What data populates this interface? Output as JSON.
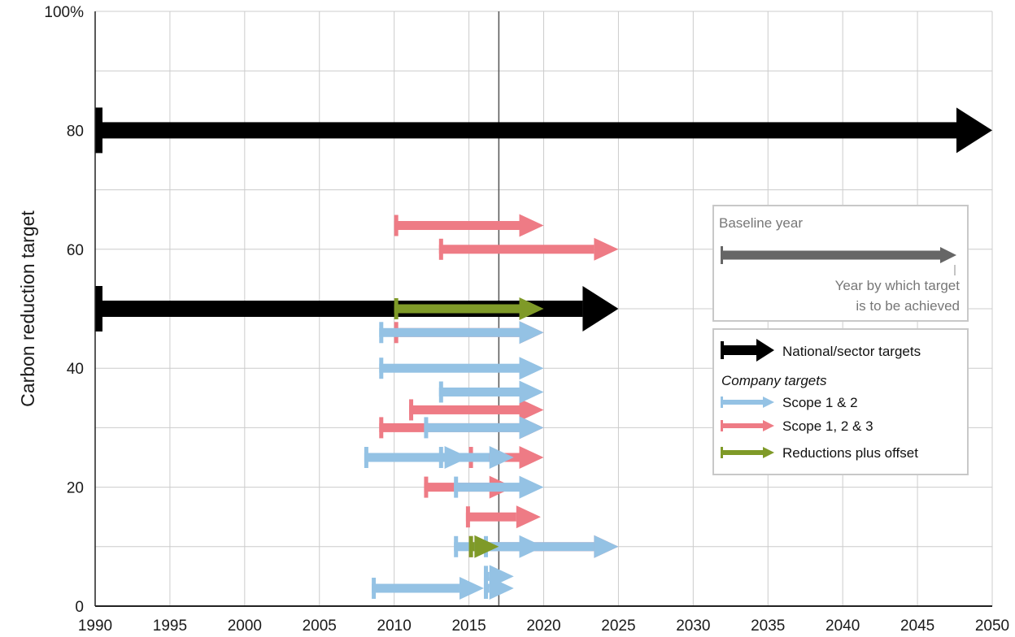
{
  "chart_data": {
    "type": "range-arrow",
    "title": "",
    "xlabel": "",
    "ylabel": "Carbon reduction target",
    "xlim": [
      1990,
      2050
    ],
    "ylim": [
      0,
      100
    ],
    "x_ticks": [
      1990,
      1995,
      2000,
      2005,
      2010,
      2015,
      2020,
      2025,
      2030,
      2035,
      2040,
      2045,
      2050
    ],
    "y_ticks": [
      {
        "value": 0,
        "label": "0"
      },
      {
        "value": 20,
        "label": "20"
      },
      {
        "value": 40,
        "label": "40"
      },
      {
        "value": 60,
        "label": "60"
      },
      {
        "value": 80,
        "label": "80"
      },
      {
        "value": 100,
        "label": "100%"
      }
    ],
    "grid": true,
    "reference_line_x": 2017,
    "colors": {
      "national": "#000000",
      "scope12": "#94c2e4",
      "scope123": "#ee7b85",
      "offset": "#7f9a28",
      "baseline_example": "#666666"
    },
    "series": [
      {
        "key": "national",
        "name": "National/sector targets",
        "arrows": [
          {
            "baseline": 1990,
            "target": 2050,
            "reduction": 80
          },
          {
            "baseline": 1990,
            "target": 2025,
            "reduction": 50
          }
        ]
      },
      {
        "key": "scope123",
        "name": "Scope 1, 2 & 3",
        "arrows": [
          {
            "baseline": 2010,
            "target": 2020,
            "reduction": 64
          },
          {
            "baseline": 2013,
            "target": 2025,
            "reduction": 60
          },
          {
            "baseline": 2010,
            "target": 2020,
            "reduction": 46
          },
          {
            "baseline": 2011,
            "target": 2020,
            "reduction": 33
          },
          {
            "baseline": 2009,
            "target": 2020,
            "reduction": 30
          },
          {
            "baseline": 2015,
            "target": 2020,
            "reduction": 25
          },
          {
            "baseline": 2012,
            "target": 2018,
            "reduction": 20
          },
          {
            "baseline": 2014.8,
            "target": 2019.8,
            "reduction": 15
          },
          {
            "baseline": 2015,
            "target": 2025,
            "reduction": 10
          }
        ]
      },
      {
        "key": "scope12",
        "name": "Scope 1 & 2",
        "arrows": [
          {
            "baseline": 2009,
            "target": 2020,
            "reduction": 46
          },
          {
            "baseline": 2009,
            "target": 2020,
            "reduction": 40
          },
          {
            "baseline": 2013,
            "target": 2020,
            "reduction": 36
          },
          {
            "baseline": 2012,
            "target": 2020,
            "reduction": 30
          },
          {
            "baseline": 2008,
            "target": 2015,
            "reduction": 25
          },
          {
            "baseline": 2013,
            "target": 2018,
            "reduction": 25
          },
          {
            "baseline": 2014,
            "target": 2020,
            "reduction": 20
          },
          {
            "baseline": 2014,
            "target": 2020,
            "reduction": 10
          },
          {
            "baseline": 2016,
            "target": 2025,
            "reduction": 10
          },
          {
            "baseline": 2008.5,
            "target": 2016,
            "reduction": 3
          },
          {
            "baseline": 2016,
            "target": 2018,
            "reduction": 5
          },
          {
            "baseline": 2016,
            "target": 2018,
            "reduction": 3
          }
        ]
      },
      {
        "key": "offset",
        "name": "Reductions plus offset",
        "arrows": [
          {
            "baseline": 2010,
            "target": 2020,
            "reduction": 50
          },
          {
            "baseline": 2015,
            "target": 2017,
            "reduction": 10
          }
        ]
      }
    ],
    "legend": {
      "explanation": {
        "baseline_label": "Baseline year",
        "target_label_line1": "Year by which target",
        "target_label_line2": "is to be achieved"
      },
      "company_heading": "Company targets",
      "placement": "right",
      "item_order": [
        "national",
        "scope12",
        "scope123",
        "offset"
      ]
    }
  }
}
